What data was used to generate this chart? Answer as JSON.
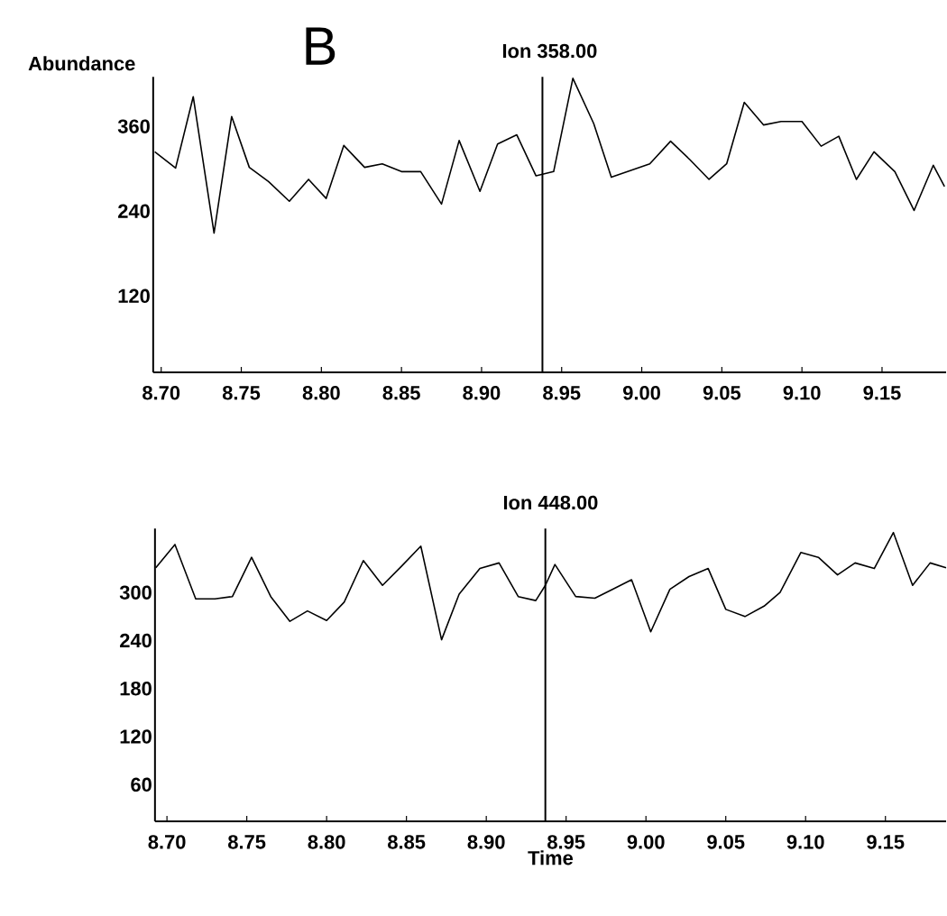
{
  "chart_data": [
    {
      "type": "line",
      "title": "Ion 358.00",
      "ylabel": "Abundance",
      "annotations": [
        "B"
      ],
      "xlim": [
        8.695,
        9.19
      ],
      "ylim": [
        12,
        430
      ],
      "xticks": [
        {
          "value": 8.7,
          "label": "8.70"
        },
        {
          "value": 8.75,
          "label": "8.75"
        },
        {
          "value": 8.8,
          "label": "8.80"
        },
        {
          "value": 8.85,
          "label": "8.85"
        },
        {
          "value": 8.9,
          "label": "8.90"
        },
        {
          "value": 8.95,
          "label": "8.95"
        },
        {
          "value": 9.0,
          "label": "9.00"
        },
        {
          "value": 9.05,
          "label": "9.05"
        },
        {
          "value": 9.1,
          "label": "9.10"
        },
        {
          "value": 9.15,
          "label": "9.15"
        }
      ],
      "yticks": [
        120,
        240,
        360
      ],
      "ref_lines": [
        {
          "axis": "x",
          "value": 8.938,
          "color": "#000000"
        }
      ],
      "series": [
        {
          "color": "#000000",
          "x": [
            8.696,
            8.709,
            8.72,
            8.733,
            8.744,
            8.755,
            8.767,
            8.78,
            8.792,
            8.803,
            8.814,
            8.827,
            8.838,
            8.85,
            8.862,
            8.875,
            8.886,
            8.899,
            8.91,
            8.922,
            8.934,
            8.945,
            8.957,
            8.97,
            8.981,
            9.005,
            9.018,
            9.03,
            9.042,
            9.053,
            9.064,
            9.076,
            9.087,
            9.1,
            9.112,
            9.123,
            9.134,
            9.145,
            9.158,
            9.17,
            9.182,
            9.189
          ],
          "values": [
            324,
            301,
            402,
            209,
            374,
            302,
            282,
            254,
            285,
            258,
            333,
            302,
            307,
            296,
            296,
            250,
            340,
            268,
            335,
            348,
            290,
            296,
            428,
            364,
            288,
            307,
            339,
            313,
            285,
            307,
            394,
            362,
            367,
            367,
            332,
            346,
            285,
            324,
            296,
            241,
            305,
            275
          ]
        }
      ]
    },
    {
      "type": "line",
      "title": "Ion 448.00",
      "xlabel": "Time",
      "xlim": [
        8.6925,
        9.188
      ],
      "ylim": [
        14,
        380
      ],
      "xticks": [
        {
          "value": 8.7,
          "label": "8.70"
        },
        {
          "value": 8.75,
          "label": "8.75"
        },
        {
          "value": 8.8,
          "label": "8.80"
        },
        {
          "value": 8.85,
          "label": "8.85"
        },
        {
          "value": 8.9,
          "label": "8.90"
        },
        {
          "value": 8.95,
          "label": "8.95"
        },
        {
          "value": 9.0,
          "label": "9.00"
        },
        {
          "value": 9.05,
          "label": "9.05"
        },
        {
          "value": 9.1,
          "label": "9.10"
        },
        {
          "value": 9.15,
          "label": "9.15"
        }
      ],
      "yticks": [
        60,
        120,
        180,
        240,
        300
      ],
      "ref_lines": [
        {
          "axis": "x",
          "value": 8.937,
          "color": "#000000"
        }
      ],
      "series": [
        {
          "color": "#000000",
          "x": [
            8.693,
            8.705,
            8.718,
            8.73,
            8.741,
            8.753,
            8.765,
            8.777,
            8.788,
            8.8,
            8.811,
            8.823,
            8.835,
            8.847,
            8.859,
            8.872,
            8.883,
            8.896,
            8.908,
            8.92,
            8.931,
            8.937,
            8.943,
            8.956,
            8.968,
            8.979,
            8.991,
            9.003,
            9.015,
            9.027,
            9.039,
            9.05,
            9.062,
            9.074,
            9.084,
            9.097,
            9.108,
            9.12,
            9.131,
            9.143,
            9.155,
            9.167,
            9.178,
            9.188
          ],
          "values": [
            331,
            360,
            292,
            292,
            295,
            344,
            295,
            264,
            277,
            265,
            288,
            340,
            309,
            333,
            358,
            241,
            298,
            330,
            337,
            295,
            290,
            309,
            335,
            295,
            293,
            304,
            316,
            251,
            304,
            320,
            330,
            279,
            270,
            283,
            300,
            350,
            344,
            322,
            337,
            330,
            375,
            309,
            337,
            331
          ]
        }
      ]
    }
  ]
}
